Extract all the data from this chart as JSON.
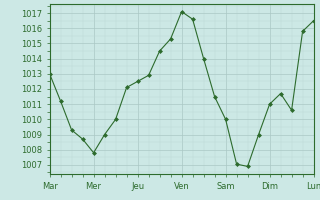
{
  "x_values": [
    0,
    1,
    2,
    3,
    4,
    5,
    6,
    7,
    8,
    9,
    10,
    11,
    12,
    13,
    14,
    15,
    16,
    17,
    18,
    19,
    20,
    21,
    22,
    23,
    24
  ],
  "y_values": [
    1013.0,
    1011.2,
    1009.3,
    1008.7,
    1007.8,
    1009.0,
    1010.0,
    1012.1,
    1012.5,
    1012.9,
    1014.5,
    1015.3,
    1017.1,
    1016.6,
    1014.0,
    1011.5,
    1010.0,
    1007.05,
    1006.9,
    1009.0,
    1011.0,
    1011.7,
    1010.6,
    1015.8,
    1016.5
  ],
  "x_tick_positions": [
    0,
    4,
    8,
    12,
    16,
    20,
    24
  ],
  "x_tick_labels": [
    "Mar",
    "Mer",
    "Jeu",
    "Ven",
    "Sam",
    "Dim",
    "Lun"
  ],
  "y_ticks": [
    1007,
    1008,
    1009,
    1010,
    1011,
    1012,
    1013,
    1014,
    1015,
    1016,
    1017
  ],
  "ylim": [
    1006.4,
    1017.6
  ],
  "xlim": [
    0,
    24
  ],
  "line_color": "#2d6b2d",
  "marker_color": "#2d6b2d",
  "bg_color": "#cce8e5",
  "grid_color_major": "#aac8c5",
  "grid_color_minor": "#bcd8d5",
  "spine_color": "#2d6b2d",
  "tick_label_color": "#2d6b2d"
}
